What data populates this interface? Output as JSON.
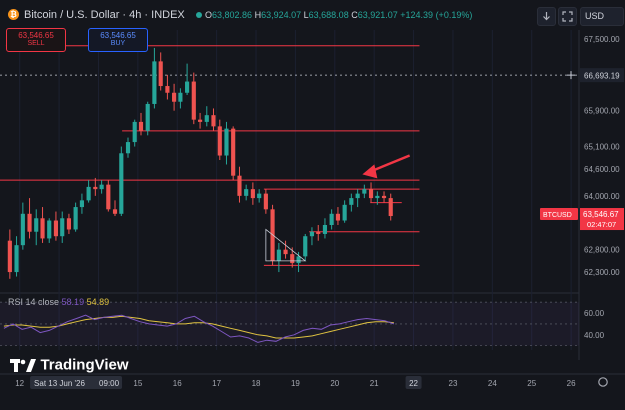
{
  "header": {
    "title": "Bitcoin / U.S. Dollar · 4h · INDEX",
    "ohlc": {
      "o_label": "O",
      "o": "63,802.86",
      "h_label": "H",
      "h": "63,924.07",
      "l_label": "L",
      "l": "63,688.08",
      "c_label": "C",
      "c": "63,921.07",
      "change": "+124.39 (+0.19%)"
    },
    "currency": "USD",
    "icons": [
      "download-icon",
      "fullscreen-icon"
    ]
  },
  "trade": {
    "sell_price": "63,546.65",
    "sell_label": "SELL",
    "buy_price": "63,546.65",
    "buy_label": "BUY"
  },
  "price_axis": {
    "labels": [
      "67,500.00",
      "66,693.19",
      "65,900.00",
      "65,100.00",
      "64,600.00",
      "64,000.00",
      "62,800.00",
      "62,300.00"
    ],
    "badge_symbol": "BTCUSD",
    "badge_price": "63,546.67",
    "badge_time": "02:47:07"
  },
  "rsi": {
    "label": "RSI 14 close",
    "value1": "58.19",
    "value2": "54.89",
    "axis_labels": [
      "60.00",
      "40.00"
    ]
  },
  "time_axis": {
    "labels": [
      "12",
      "Sat 13 Jun '26",
      "09:00",
      "15",
      "16",
      "17",
      "18",
      "19",
      "20",
      "21",
      "22",
      "23",
      "24",
      "25",
      "26"
    ],
    "highlight": "22"
  },
  "watermark": "TradingView",
  "colors": {
    "background": "#14161c",
    "up": "#26a69a",
    "down": "#ef5350",
    "level_line": "#f23645",
    "rsi_line": "#7e57c2",
    "rsi_ma": "#e0c341",
    "arrow": "#f23645"
  },
  "chart_data": {
    "type": "candlestick",
    "symbol": "BTCUSD",
    "timeframe": "4h",
    "ylim": [
      61900,
      67700
    ],
    "x_range": [
      11.5,
      26.2
    ],
    "candles": [
      {
        "x": 11.75,
        "o": 63000,
        "h": 63250,
        "l": 62150,
        "c": 62300
      },
      {
        "x": 11.92,
        "o": 62300,
        "h": 63100,
        "l": 62200,
        "c": 62900
      },
      {
        "x": 12.08,
        "o": 62900,
        "h": 63850,
        "l": 62800,
        "c": 63600
      },
      {
        "x": 12.25,
        "o": 63600,
        "h": 63950,
        "l": 63050,
        "c": 63200
      },
      {
        "x": 12.42,
        "o": 63200,
        "h": 63700,
        "l": 62900,
        "c": 63500
      },
      {
        "x": 12.58,
        "o": 63500,
        "h": 63750,
        "l": 62950,
        "c": 63050
      },
      {
        "x": 12.75,
        "o": 63050,
        "h": 63500,
        "l": 62950,
        "c": 63450
      },
      {
        "x": 12.92,
        "o": 63450,
        "h": 63650,
        "l": 63000,
        "c": 63100
      },
      {
        "x": 13.08,
        "o": 63100,
        "h": 63650,
        "l": 62950,
        "c": 63500
      },
      {
        "x": 13.25,
        "o": 63500,
        "h": 63600,
        "l": 63150,
        "c": 63250
      },
      {
        "x": 13.42,
        "o": 63250,
        "h": 63850,
        "l": 63200,
        "c": 63750
      },
      {
        "x": 13.58,
        "o": 63750,
        "h": 64050,
        "l": 63600,
        "c": 63900
      },
      {
        "x": 13.75,
        "o": 63900,
        "h": 64350,
        "l": 63850,
        "c": 64200
      },
      {
        "x": 13.92,
        "o": 64200,
        "h": 64400,
        "l": 64000,
        "c": 64150
      },
      {
        "x": 14.08,
        "o": 64150,
        "h": 64350,
        "l": 64050,
        "c": 64250
      },
      {
        "x": 14.25,
        "o": 64250,
        "h": 64350,
        "l": 63650,
        "c": 63700
      },
      {
        "x": 14.42,
        "o": 63700,
        "h": 63900,
        "l": 63550,
        "c": 63600
      },
      {
        "x": 14.58,
        "o": 63600,
        "h": 65100,
        "l": 63550,
        "c": 64950
      },
      {
        "x": 14.75,
        "o": 64950,
        "h": 65300,
        "l": 64850,
        "c": 65200
      },
      {
        "x": 14.92,
        "o": 65200,
        "h": 65700,
        "l": 65100,
        "c": 65650
      },
      {
        "x": 15.08,
        "o": 65650,
        "h": 65850,
        "l": 65350,
        "c": 65450
      },
      {
        "x": 15.25,
        "o": 65450,
        "h": 66100,
        "l": 65350,
        "c": 66050
      },
      {
        "x": 15.42,
        "o": 66050,
        "h": 67300,
        "l": 65950,
        "c": 67000
      },
      {
        "x": 15.58,
        "o": 67000,
        "h": 67200,
        "l": 66350,
        "c": 66450
      },
      {
        "x": 15.75,
        "o": 66450,
        "h": 66700,
        "l": 66150,
        "c": 66300
      },
      {
        "x": 15.92,
        "o": 66300,
        "h": 66500,
        "l": 65900,
        "c": 66100
      },
      {
        "x": 16.08,
        "o": 66100,
        "h": 66400,
        "l": 65950,
        "c": 66300
      },
      {
        "x": 16.25,
        "o": 66300,
        "h": 66950,
        "l": 66250,
        "c": 66550
      },
      {
        "x": 16.42,
        "o": 66550,
        "h": 66750,
        "l": 65600,
        "c": 65700
      },
      {
        "x": 16.58,
        "o": 65700,
        "h": 65850,
        "l": 65500,
        "c": 65650
      },
      {
        "x": 16.75,
        "o": 65650,
        "h": 66000,
        "l": 65550,
        "c": 65800
      },
      {
        "x": 16.92,
        "o": 65800,
        "h": 65950,
        "l": 65450,
        "c": 65550
      },
      {
        "x": 17.08,
        "o": 65550,
        "h": 65700,
        "l": 64800,
        "c": 64900
      },
      {
        "x": 17.25,
        "o": 64900,
        "h": 65650,
        "l": 64700,
        "c": 65500
      },
      {
        "x": 17.42,
        "o": 65500,
        "h": 65550,
        "l": 64350,
        "c": 64450
      },
      {
        "x": 17.58,
        "o": 64450,
        "h": 64650,
        "l": 63850,
        "c": 64000
      },
      {
        "x": 17.75,
        "o": 64000,
        "h": 64250,
        "l": 63900,
        "c": 64150
      },
      {
        "x": 17.92,
        "o": 64150,
        "h": 64300,
        "l": 63800,
        "c": 63950
      },
      {
        "x": 18.08,
        "o": 63950,
        "h": 64150,
        "l": 63850,
        "c": 64050
      },
      {
        "x": 18.25,
        "o": 64050,
        "h": 64150,
        "l": 63600,
        "c": 63700
      },
      {
        "x": 18.42,
        "o": 63700,
        "h": 63800,
        "l": 62450,
        "c": 62550
      },
      {
        "x": 18.58,
        "o": 62550,
        "h": 62950,
        "l": 62300,
        "c": 62800
      },
      {
        "x": 18.75,
        "o": 62800,
        "h": 63000,
        "l": 62600,
        "c": 62700
      },
      {
        "x": 18.92,
        "o": 62700,
        "h": 62850,
        "l": 62400,
        "c": 62500
      },
      {
        "x": 19.08,
        "o": 62500,
        "h": 62750,
        "l": 62300,
        "c": 62650
      },
      {
        "x": 19.25,
        "o": 62650,
        "h": 63150,
        "l": 62550,
        "c": 63100
      },
      {
        "x": 19.42,
        "o": 63100,
        "h": 63300,
        "l": 62900,
        "c": 63200
      },
      {
        "x": 19.58,
        "o": 63200,
        "h": 63350,
        "l": 63000,
        "c": 63150
      },
      {
        "x": 19.75,
        "o": 63150,
        "h": 63500,
        "l": 63050,
        "c": 63350
      },
      {
        "x": 19.92,
        "o": 63350,
        "h": 63700,
        "l": 63250,
        "c": 63600
      },
      {
        "x": 20.08,
        "o": 63600,
        "h": 63750,
        "l": 63350,
        "c": 63450
      },
      {
        "x": 20.25,
        "o": 63450,
        "h": 63900,
        "l": 63400,
        "c": 63800
      },
      {
        "x": 20.42,
        "o": 63800,
        "h": 64050,
        "l": 63650,
        "c": 63950
      },
      {
        "x": 20.58,
        "o": 63950,
        "h": 64150,
        "l": 63750,
        "c": 64050
      },
      {
        "x": 20.75,
        "o": 64050,
        "h": 64250,
        "l": 63950,
        "c": 64150
      },
      {
        "x": 20.92,
        "o": 64150,
        "h": 64300,
        "l": 63850,
        "c": 63950
      },
      {
        "x": 21.08,
        "o": 63950,
        "h": 64100,
        "l": 63800,
        "c": 64000
      },
      {
        "x": 21.25,
        "o": 64000,
        "h": 64100,
        "l": 63850,
        "c": 63950
      },
      {
        "x": 21.42,
        "o": 63950,
        "h": 64050,
        "l": 63450,
        "c": 63550
      }
    ],
    "horizontal_levels": [
      {
        "price": 67350,
        "x_from": 11.65,
        "x_to": 22.15
      },
      {
        "price": 66693.19,
        "x_from": 11.5,
        "x_to": 26.2,
        "style": "dotted"
      },
      {
        "price": 65450,
        "x_from": 14.6,
        "x_to": 22.15
      },
      {
        "price": 64350,
        "x_from": 11.5,
        "x_to": 22.15
      },
      {
        "price": 64150,
        "x_from": 18.2,
        "x_to": 22.15
      },
      {
        "price": 63850,
        "x_from": 20.9,
        "x_to": 21.7
      },
      {
        "price": 63200,
        "x_from": 19.35,
        "x_to": 22.15
      },
      {
        "price": 62450,
        "x_from": 18.2,
        "x_to": 22.15
      }
    ],
    "rsi": {
      "ylim": [
        26,
        72
      ],
      "levels": [
        70,
        50,
        30
      ],
      "rsi_values": [
        46,
        50,
        45,
        47,
        42,
        44,
        48,
        52,
        55,
        58,
        54,
        56,
        57,
        58,
        55,
        52,
        50,
        49,
        48,
        50,
        55,
        57,
        52,
        48,
        43,
        38,
        39,
        37,
        33,
        35,
        34,
        38,
        40,
        44,
        46,
        45,
        49,
        50,
        52,
        54,
        55,
        54,
        53,
        50
      ],
      "ma_values": [
        48,
        49,
        49,
        48,
        47,
        47,
        48,
        50,
        52,
        54,
        55,
        56,
        56,
        57,
        56,
        55,
        53,
        52,
        51,
        50,
        50,
        51,
        51,
        50,
        48,
        46,
        44,
        42,
        40,
        39,
        37,
        37,
        37,
        38,
        39,
        41,
        43,
        45,
        47,
        49,
        51,
        52,
        52,
        51
      ]
    }
  }
}
